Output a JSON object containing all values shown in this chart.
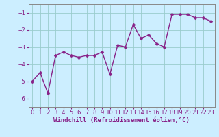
{
  "x": [
    0,
    1,
    2,
    3,
    4,
    5,
    6,
    7,
    8,
    9,
    10,
    11,
    12,
    13,
    14,
    15,
    16,
    17,
    18,
    19,
    20,
    21,
    22,
    23
  ],
  "y": [
    -5.0,
    -4.5,
    -5.7,
    -3.5,
    -3.3,
    -3.5,
    -3.6,
    -3.5,
    -3.5,
    -3.3,
    -4.6,
    -2.9,
    -3.0,
    -1.7,
    -2.5,
    -2.3,
    -2.8,
    -3.0,
    -1.1,
    -1.1,
    -1.1,
    -1.3,
    -1.3,
    -1.5
  ],
  "line_color": "#882288",
  "marker_color": "#882288",
  "bg_color": "#cceeff",
  "grid_color": "#99cccc",
  "xlabel": "Windchill (Refroidissement éolien,°C)",
  "xlim": [
    -0.5,
    23.5
  ],
  "ylim": [
    -6.5,
    -0.5
  ],
  "yticks": [
    -6,
    -5,
    -4,
    -3,
    -2,
    -1
  ],
  "xticks": [
    0,
    1,
    2,
    3,
    4,
    5,
    6,
    7,
    8,
    9,
    10,
    11,
    12,
    13,
    14,
    15,
    16,
    17,
    18,
    19,
    20,
    21,
    22,
    23
  ],
  "xlabel_fontsize": 6.5,
  "tick_fontsize": 6.5,
  "line_width": 1.0,
  "marker_size": 2.5
}
